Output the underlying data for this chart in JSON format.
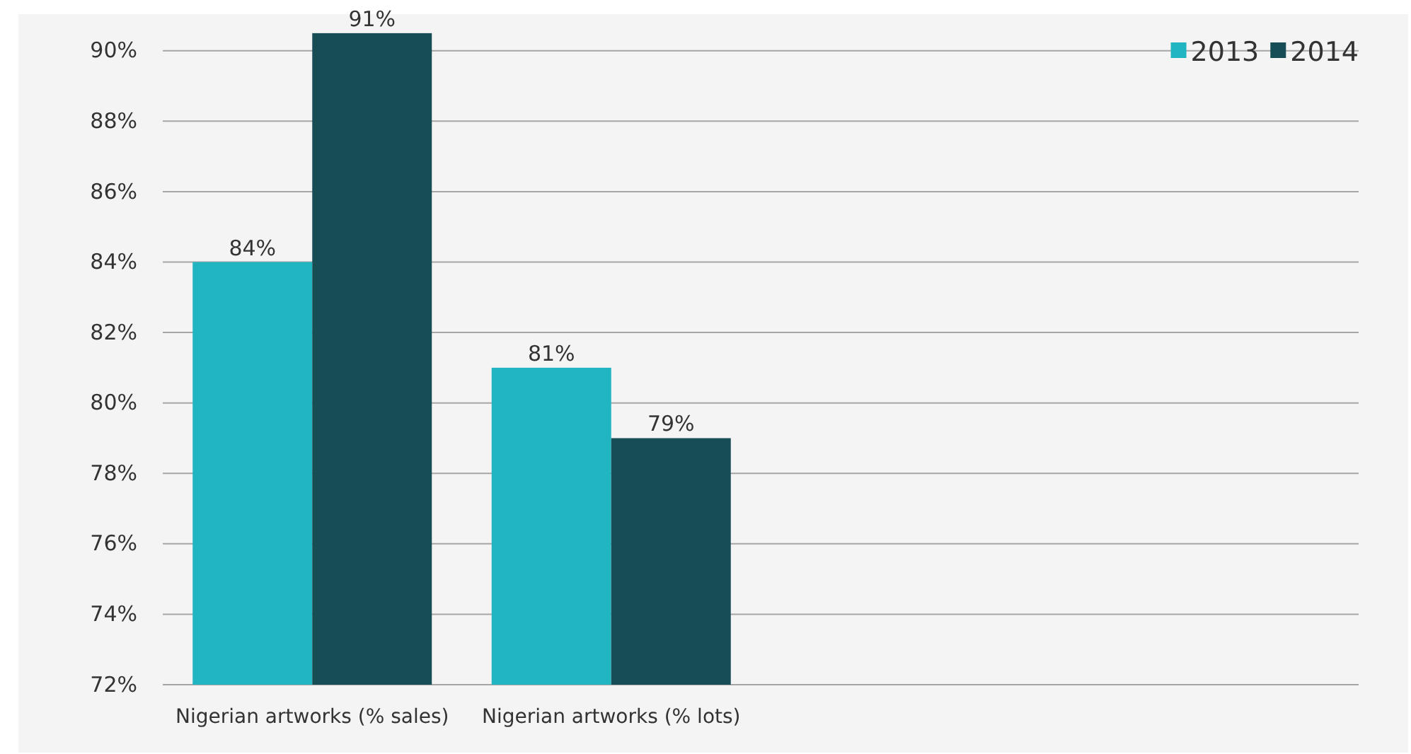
{
  "chart_data": {
    "type": "bar",
    "categories": [
      "Nigerian artworks (% sales)",
      "Nigerian artworks (% lots)",
      null,
      null
    ],
    "series": [
      {
        "name": "2013",
        "color": "#20b5c0",
        "values": [
          84,
          81,
          null,
          null
        ],
        "value_labels": [
          "84%",
          "81%",
          null,
          null
        ]
      },
      {
        "name": "2014",
        "color": "#174d55",
        "values": [
          90.5,
          79,
          null,
          null
        ],
        "value_labels": [
          "91%",
          "79%",
          null,
          null
        ]
      }
    ],
    "ylim": [
      72,
      91
    ],
    "yticks": [
      {
        "value": 72,
        "label": "72%"
      },
      {
        "value": 74,
        "label": "74%"
      },
      {
        "value": 76,
        "label": "76%"
      },
      {
        "value": 78,
        "label": "78%"
      },
      {
        "value": 80,
        "label": "80%"
      },
      {
        "value": 82,
        "label": "82%"
      },
      {
        "value": 84,
        "label": "84%"
      },
      {
        "value": 86,
        "label": "86%"
      },
      {
        "value": 88,
        "label": "88%"
      },
      {
        "value": 90,
        "label": "90%"
      }
    ],
    "grid": "y",
    "legend": "top right"
  }
}
